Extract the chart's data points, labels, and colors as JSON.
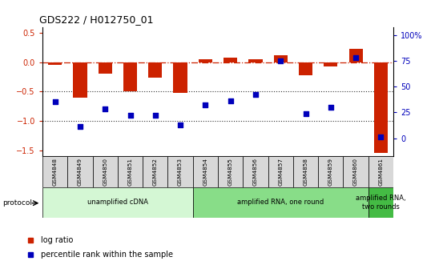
{
  "title": "GDS222 / H012750_01",
  "samples": [
    "GSM4848",
    "GSM4849",
    "GSM4850",
    "GSM4851",
    "GSM4852",
    "GSM4853",
    "GSM4854",
    "GSM4855",
    "GSM4856",
    "GSM4857",
    "GSM4858",
    "GSM4859",
    "GSM4860",
    "GSM4861"
  ],
  "log_ratio": [
    -0.04,
    -0.6,
    -0.2,
    -0.49,
    -0.27,
    -0.53,
    0.05,
    0.07,
    0.05,
    0.12,
    -0.22,
    -0.07,
    0.22,
    -1.55
  ],
  "percentile": [
    35,
    11,
    28,
    22,
    22,
    13,
    32,
    36,
    42,
    75,
    24,
    30,
    78,
    1
  ],
  "ylim_left": [
    -1.6,
    0.6
  ],
  "ylim_right": [
    -17.4,
    108
  ],
  "yticks_left": [
    -1.5,
    -1.0,
    -0.5,
    0.0,
    0.5
  ],
  "yticks_right": [
    0,
    25,
    50,
    75,
    100
  ],
  "bar_color": "#cc2200",
  "dot_color": "#0000bb",
  "hline_color": "#cc2200",
  "dotted_color": "#333333",
  "protocol_groups": [
    {
      "label": "unamplified cDNA",
      "start": 0,
      "end": 5,
      "color": "#d4f7d4"
    },
    {
      "label": "amplified RNA, one round",
      "start": 6,
      "end": 12,
      "color": "#88dd88"
    },
    {
      "label": "amplified RNA,\ntwo rounds",
      "start": 13,
      "end": 13,
      "color": "#44bb44"
    }
  ],
  "legend_items": [
    {
      "label": "log ratio",
      "color": "#cc2200"
    },
    {
      "label": "percentile rank within the sample",
      "color": "#0000bb"
    }
  ]
}
